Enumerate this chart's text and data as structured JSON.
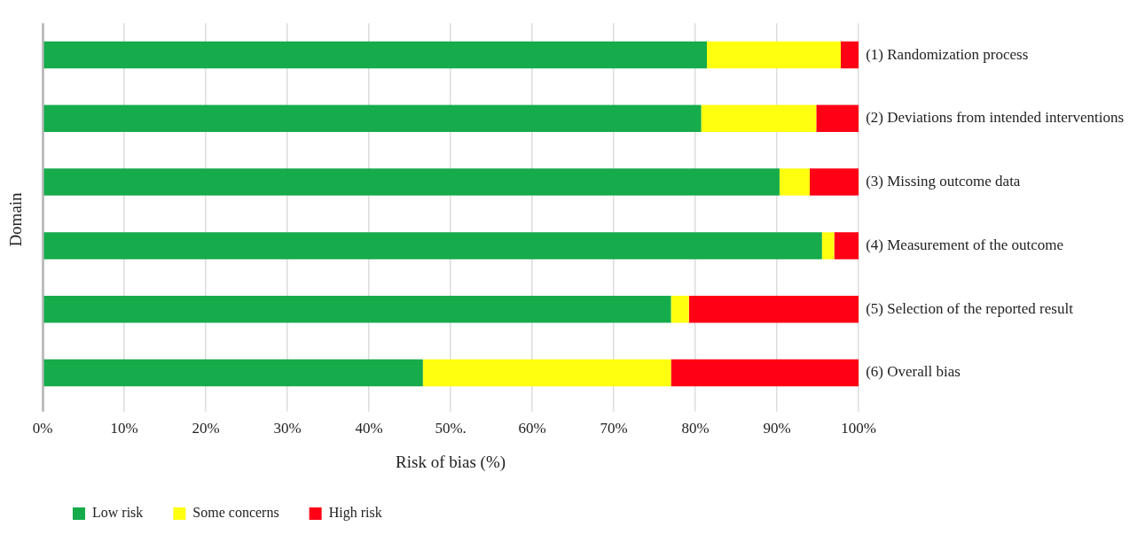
{
  "chart_data": {
    "type": "bar",
    "orientation": "horizontal",
    "stacked": true,
    "xlabel": "Risk of bias (%)",
    "ylabel": "Domain",
    "categories": [
      "(1) Randomization process",
      "(2) Deviations from intended interventions",
      "(3) Missing outcome data",
      "(4) Measurement of the outcome",
      "(5) Selection of the reported result",
      "(6) Overall bias"
    ],
    "series": [
      {
        "name": "Low risk",
        "color": "#16ab4b",
        "values": [
          81.4,
          80.7,
          90.3,
          95.5,
          77.0,
          46.6
        ]
      },
      {
        "name": "Some concerns",
        "color": "#ffff10",
        "values": [
          16.4,
          14.1,
          3.7,
          1.5,
          2.2,
          30.4
        ]
      },
      {
        "name": "High risk",
        "color": "#ff0015",
        "values": [
          2.2,
          5.2,
          6.0,
          3.0,
          20.8,
          23.0
        ]
      }
    ],
    "xlim": [
      0,
      100
    ],
    "xticks": [
      {
        "value": 0,
        "label": "0%"
      },
      {
        "value": 10,
        "label": "10%"
      },
      {
        "value": 20,
        "label": "20%"
      },
      {
        "value": 30,
        "label": "30%"
      },
      {
        "value": 40,
        "label": "40%"
      },
      {
        "value": 50,
        "label": "50%."
      },
      {
        "value": 60,
        "label": "60%"
      },
      {
        "value": 70,
        "label": "70%"
      },
      {
        "value": 80,
        "label": "80%"
      },
      {
        "value": 90,
        "label": "90%"
      },
      {
        "value": 100,
        "label": "100%"
      }
    ],
    "grid": "x",
    "legend": "bottom left"
  }
}
